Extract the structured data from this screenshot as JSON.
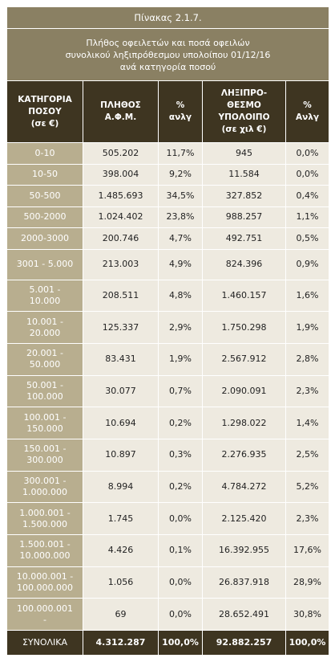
{
  "table": {
    "title": "Πίνακας 2.1.7.",
    "subtitle": "Πλήθος οφειλετών και ποσά οφειλών\nσυνολικού ληξιπρόθεσμου υπολοίπου 01/12/16\nανά κατηγορία ποσού",
    "header": [
      "ΚΑΤΗΓΟΡΙΑ\nΠΟΣΟΥ\n(σε €)",
      "ΠΛΗΘΟΣ\nΑ.Φ.Μ.",
      "%\nανλγ",
      "ΛΗΞΙΠΡΟ-\nΘΕΣΜΟ\nΥΠΟΛΟΙΠΟ\n(σε χιλ €)",
      "%\nΑνλγ"
    ],
    "rows": [
      [
        "0-10",
        "505.202",
        "11,7%",
        "945",
        "0,0%"
      ],
      [
        "10-50",
        "398.004",
        "9,2%",
        "11.584",
        "0,0%"
      ],
      [
        "50-500",
        "1.485.693",
        "34,5%",
        "327.852",
        "0,4%"
      ],
      [
        "500-2000",
        "1.024.402",
        "23,8%",
        "988.257",
        "1,1%"
      ],
      [
        "2000-3000",
        "200.746",
        "4,7%",
        "492.751",
        "0,5%"
      ],
      [
        "3001 - 5.000",
        "213.003",
        "4,9%",
        "824.396",
        "0,9%"
      ],
      [
        "5.001 -\n10.000",
        "208.511",
        "4,8%",
        "1.460.157",
        "1,6%"
      ],
      [
        "10.001 -\n20.000",
        "125.337",
        "2,9%",
        "1.750.298",
        "1,9%"
      ],
      [
        "20.001 -\n50.000",
        "83.431",
        "1,9%",
        "2.567.912",
        "2,8%"
      ],
      [
        "50.001 -\n100.000",
        "30.077",
        "0,7%",
        "2.090.091",
        "2,3%"
      ],
      [
        "100.001 -\n150.000",
        "10.694",
        "0,2%",
        "1.298.022",
        "1,4%"
      ],
      [
        "150.001 -\n300.000",
        "10.897",
        "0,3%",
        "2.276.935",
        "2,5%"
      ],
      [
        "300.001 -\n1.000.000",
        "8.994",
        "0,2%",
        "4.784.272",
        "5,2%"
      ],
      [
        "1.000.001 -\n1.500.000",
        "1.745",
        "0,0%",
        "2.125.420",
        "2,3%"
      ],
      [
        "1.500.001 -\n10.000.000",
        "4.426",
        "0,1%",
        "16.392.955",
        "17,6%"
      ],
      [
        "10.000.001 -\n100.000.000",
        "1.056",
        "0,0%",
        "26.837.918",
        "28,9%"
      ],
      [
        "100.000.001\n-",
        "69",
        "0,0%",
        "28.652.491",
        "30,8%"
      ]
    ],
    "total": [
      "ΣΥΝΟΛΙΚΑ",
      "4.312.287",
      "100,0%",
      "92.882.257",
      "100,0%"
    ]
  }
}
